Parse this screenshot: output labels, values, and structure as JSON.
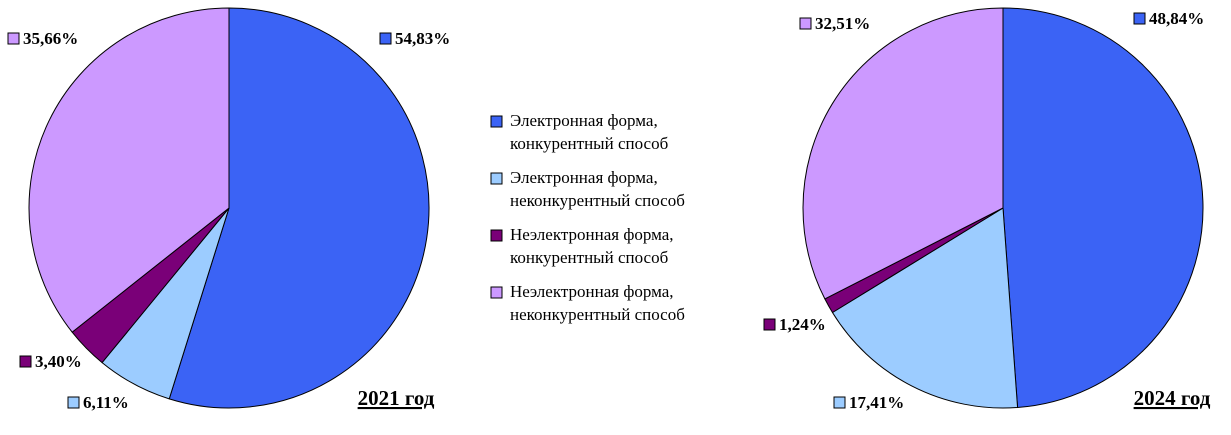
{
  "colors": {
    "electronic_competitive": "#3B63F5",
    "electronic_noncompetitive": "#9CCCFF",
    "nonelectronic_competitive": "#7A0078",
    "nonelectronic_noncompetitive": "#CC99FF"
  },
  "legend": [
    {
      "line1": "Электронная форма,",
      "line2": "конкурентный способ",
      "color": "#3B63F5"
    },
    {
      "line1": "Электронная форма,",
      "line2": "неконкурентный способ",
      "color": "#9CCCFF"
    },
    {
      "line1": "Неэлектронная форма,",
      "line2": "конкурентный способ",
      "color": "#7A0078"
    },
    {
      "line1": "Неэлектронная форма,",
      "line2": "неконкурентный способ",
      "color": "#CC99FF"
    }
  ],
  "chart_data": [
    {
      "type": "pie",
      "title": "2021 год",
      "slices": [
        {
          "label": "54,83%",
          "value": 54.83,
          "color": "#3B63F5"
        },
        {
          "label": "6,11%",
          "value": 6.11,
          "color": "#9CCCFF"
        },
        {
          "label": "3,40%",
          "value": 3.4,
          "color": "#7A0078"
        },
        {
          "label": "35,66%",
          "value": 35.66,
          "color": "#CC99FF"
        }
      ]
    },
    {
      "type": "pie",
      "title": "2024 год",
      "slices": [
        {
          "label": "48,84%",
          "value": 48.84,
          "color": "#3B63F5"
        },
        {
          "label": "17,41%",
          "value": 17.41,
          "color": "#9CCCFF"
        },
        {
          "label": "1,24%",
          "value": 1.24,
          "color": "#7A0078"
        },
        {
          "label": "32,51%",
          "value": 32.51,
          "color": "#CC99FF"
        }
      ]
    }
  ]
}
